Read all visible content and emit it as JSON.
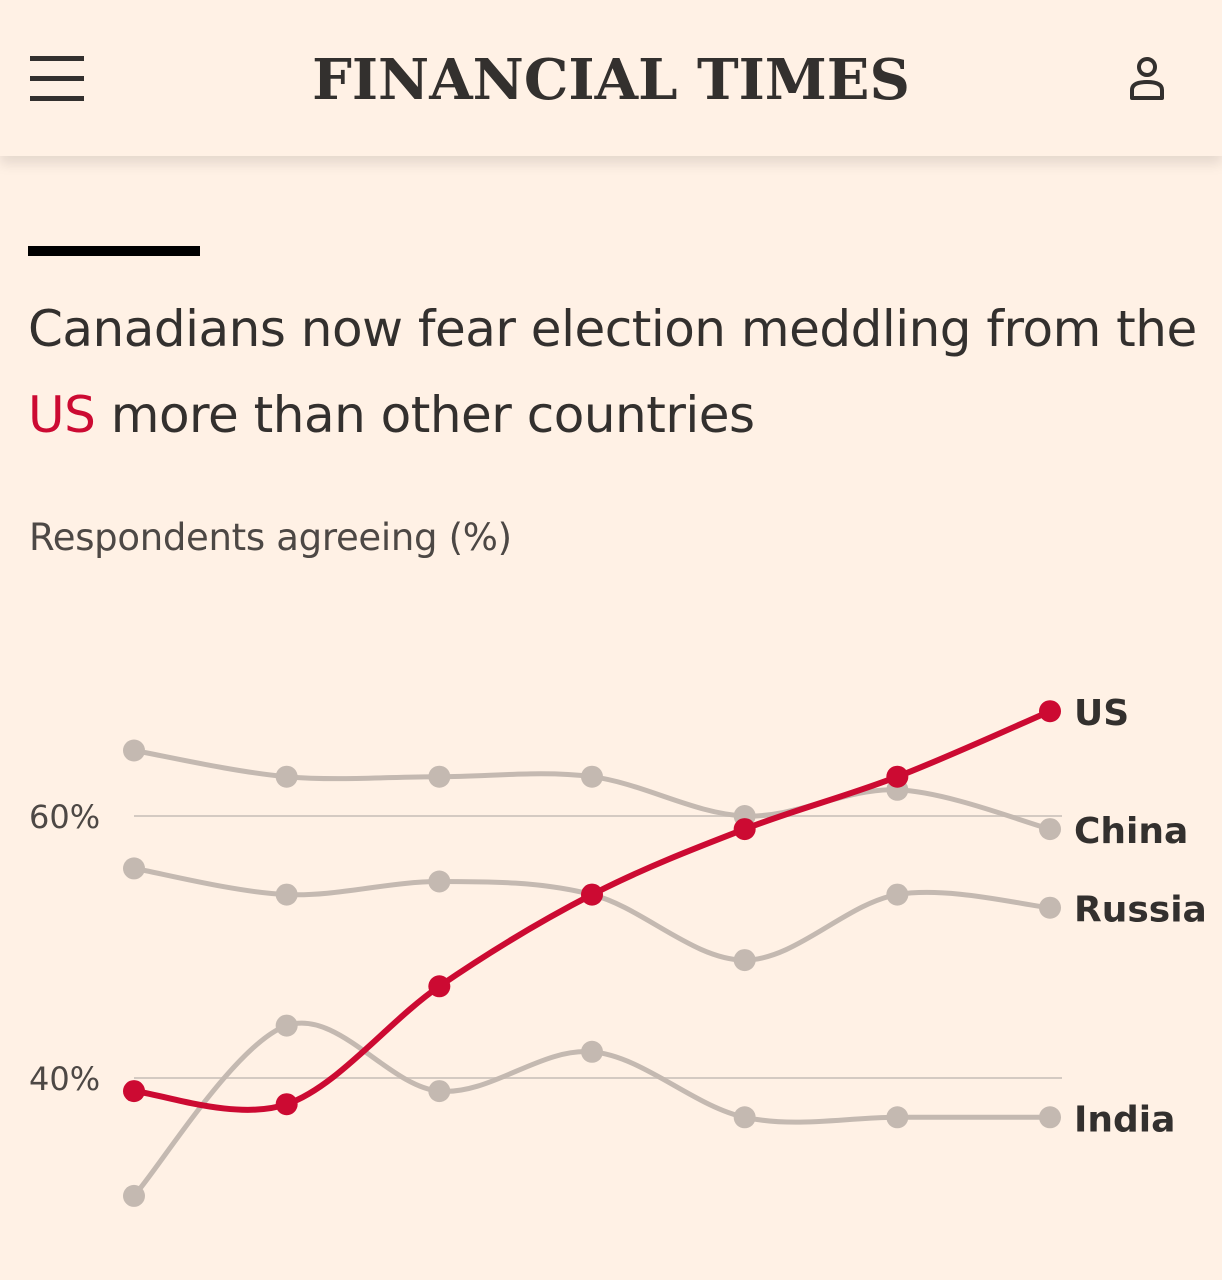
{
  "header": {
    "brand": "FINANCIAL TIMES",
    "menu_icon": "hamburger-menu-icon",
    "account_icon": "user-account-icon"
  },
  "headline": {
    "before": "Canadians now fear election meddling from the ",
    "highlight": "US",
    "after": " more than other countries"
  },
  "colors": {
    "background": "#fff1e5",
    "highlight_series": "#cc0a32",
    "other_series": "#c4b9b1",
    "gridline": "#d4cac2",
    "text": "#33302e"
  },
  "chart_data": {
    "type": "line",
    "title": "Canadians now fear election meddling from the US more than other countries",
    "subtitle": "Respondents agreeing (%)",
    "xlabel": "",
    "ylabel": "Respondents agreeing (%)",
    "x": [
      1,
      2,
      3,
      4,
      5,
      6,
      7
    ],
    "ylim": [
      30,
      75
    ],
    "yticks": [
      40,
      60
    ],
    "ytick_labels": [
      "40%",
      "60%"
    ],
    "grid": true,
    "series": [
      {
        "name": "China",
        "label": "China",
        "highlight": false,
        "values": [
          65,
          63,
          63,
          63,
          60,
          62,
          59
        ]
      },
      {
        "name": "Russia",
        "label": "Russia",
        "highlight": false,
        "values": [
          56,
          54,
          55,
          54,
          49,
          54,
          53
        ]
      },
      {
        "name": "India",
        "label": "India",
        "highlight": false,
        "values": [
          31,
          44,
          39,
          42,
          37,
          37,
          37
        ]
      },
      {
        "name": "US",
        "label": "US",
        "highlight": true,
        "values": [
          39,
          38,
          47,
          54,
          59,
          63,
          68
        ]
      }
    ]
  }
}
